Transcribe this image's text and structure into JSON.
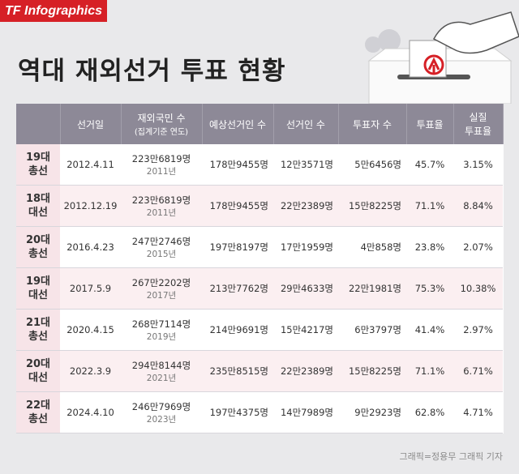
{
  "brand": "TF Infographics",
  "title": "역대 재외선거 투표 현황",
  "credit": "그래픽=정용무 그래픽 기자",
  "chart_data": {
    "type": "table",
    "columns": [
      {
        "label": "",
        "sub": ""
      },
      {
        "label": "선거일",
        "sub": ""
      },
      {
        "label": "재외국민 수",
        "sub": "(집계기준 연도)"
      },
      {
        "label": "예상선거인 수",
        "sub": ""
      },
      {
        "label": "선거인 수",
        "sub": ""
      },
      {
        "label": "투표자 수",
        "sub": ""
      },
      {
        "label": "투표율",
        "sub": ""
      },
      {
        "label": "실질",
        "sub": "투표율"
      }
    ],
    "rows": [
      {
        "election": [
          "19대",
          "총선"
        ],
        "date": "2012.4.11",
        "overseas": "223만6819명",
        "year": "2011년",
        "expected": "178만9455명",
        "voters": "12만3571명",
        "turnout_count": "5만6456명",
        "turnout": "45.7%",
        "real_turnout": "3.15%"
      },
      {
        "election": [
          "18대",
          "대선"
        ],
        "date": "2012.12.19",
        "overseas": "223만6819명",
        "year": "2011년",
        "expected": "178만9455명",
        "voters": "22만2389명",
        "turnout_count": "15만8225명",
        "turnout": "71.1%",
        "real_turnout": "8.84%"
      },
      {
        "election": [
          "20대",
          "총선"
        ],
        "date": "2016.4.23",
        "overseas": "247만2746명",
        "year": "2015년",
        "expected": "197만8197명",
        "voters": "17만1959명",
        "turnout_count": "4만858명",
        "turnout": "23.8%",
        "real_turnout": "2.07%"
      },
      {
        "election": [
          "19대",
          "대선"
        ],
        "date": "2017.5.9",
        "overseas": "267만2202명",
        "year": "2017년",
        "expected": "213만7762명",
        "voters": "29만4633명",
        "turnout_count": "22만1981명",
        "turnout": "75.3%",
        "real_turnout": "10.38%"
      },
      {
        "election": [
          "21대",
          "총선"
        ],
        "date": "2020.4.15",
        "overseas": "268만7114명",
        "year": "2019년",
        "expected": "214만9691명",
        "voters": "15만4217명",
        "turnout_count": "6만3797명",
        "turnout": "41.4%",
        "real_turnout": "2.97%"
      },
      {
        "election": [
          "20대",
          "대선"
        ],
        "date": "2022.3.9",
        "overseas": "294만8144명",
        "year": "2021년",
        "expected": "235만8515명",
        "voters": "22만2389명",
        "turnout_count": "15만8225명",
        "turnout": "71.1%",
        "real_turnout": "6.71%"
      },
      {
        "election": [
          "22대",
          "총선"
        ],
        "date": "2024.4.10",
        "overseas": "246만7969명",
        "year": "2023년",
        "expected": "197만4375명",
        "voters": "14만7989명",
        "turnout_count": "9만2923명",
        "turnout": "62.8%",
        "real_turnout": "4.71%"
      }
    ]
  },
  "colors": {
    "header": "#8d8997",
    "rowhead": "#f7e4e8",
    "shade": "#fbeff1",
    "brand": "#d62026"
  }
}
